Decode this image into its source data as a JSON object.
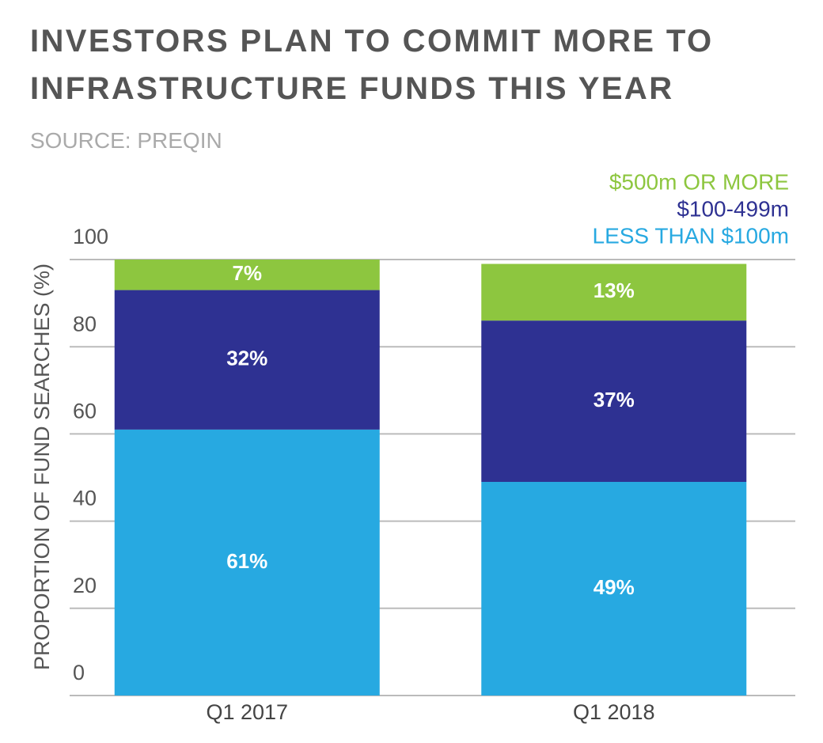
{
  "chart_data": {
    "type": "stacked_bar",
    "title": "INVESTORS PLAN TO COMMIT MORE TO INFRASTRUCTURE FUNDS THIS YEAR",
    "subtitle": "SOURCE: PREQIN",
    "y_label": "PROPORTION OF FUND SEARCHES (%)",
    "categories": [
      "Q1 2017",
      "Q1 2018"
    ],
    "series": [
      {
        "name": "LESS THAN $100m",
        "color": "#27a9e1",
        "values": [
          61,
          49
        ],
        "value_labels": [
          "61%",
          "49%"
        ]
      },
      {
        "name": "$100-499m",
        "color": "#2e3192",
        "values": [
          32,
          37
        ],
        "value_labels": [
          "32%",
          "37%"
        ]
      },
      {
        "name": "$500m OR MORE",
        "color": "#8dc63f",
        "values": [
          7,
          13
        ],
        "value_labels": [
          "7%",
          "13%"
        ]
      }
    ],
    "ylim": [
      0,
      100
    ],
    "yticks": [
      0,
      20,
      40,
      60,
      80,
      100
    ],
    "grid": true,
    "legend": "top-right"
  }
}
